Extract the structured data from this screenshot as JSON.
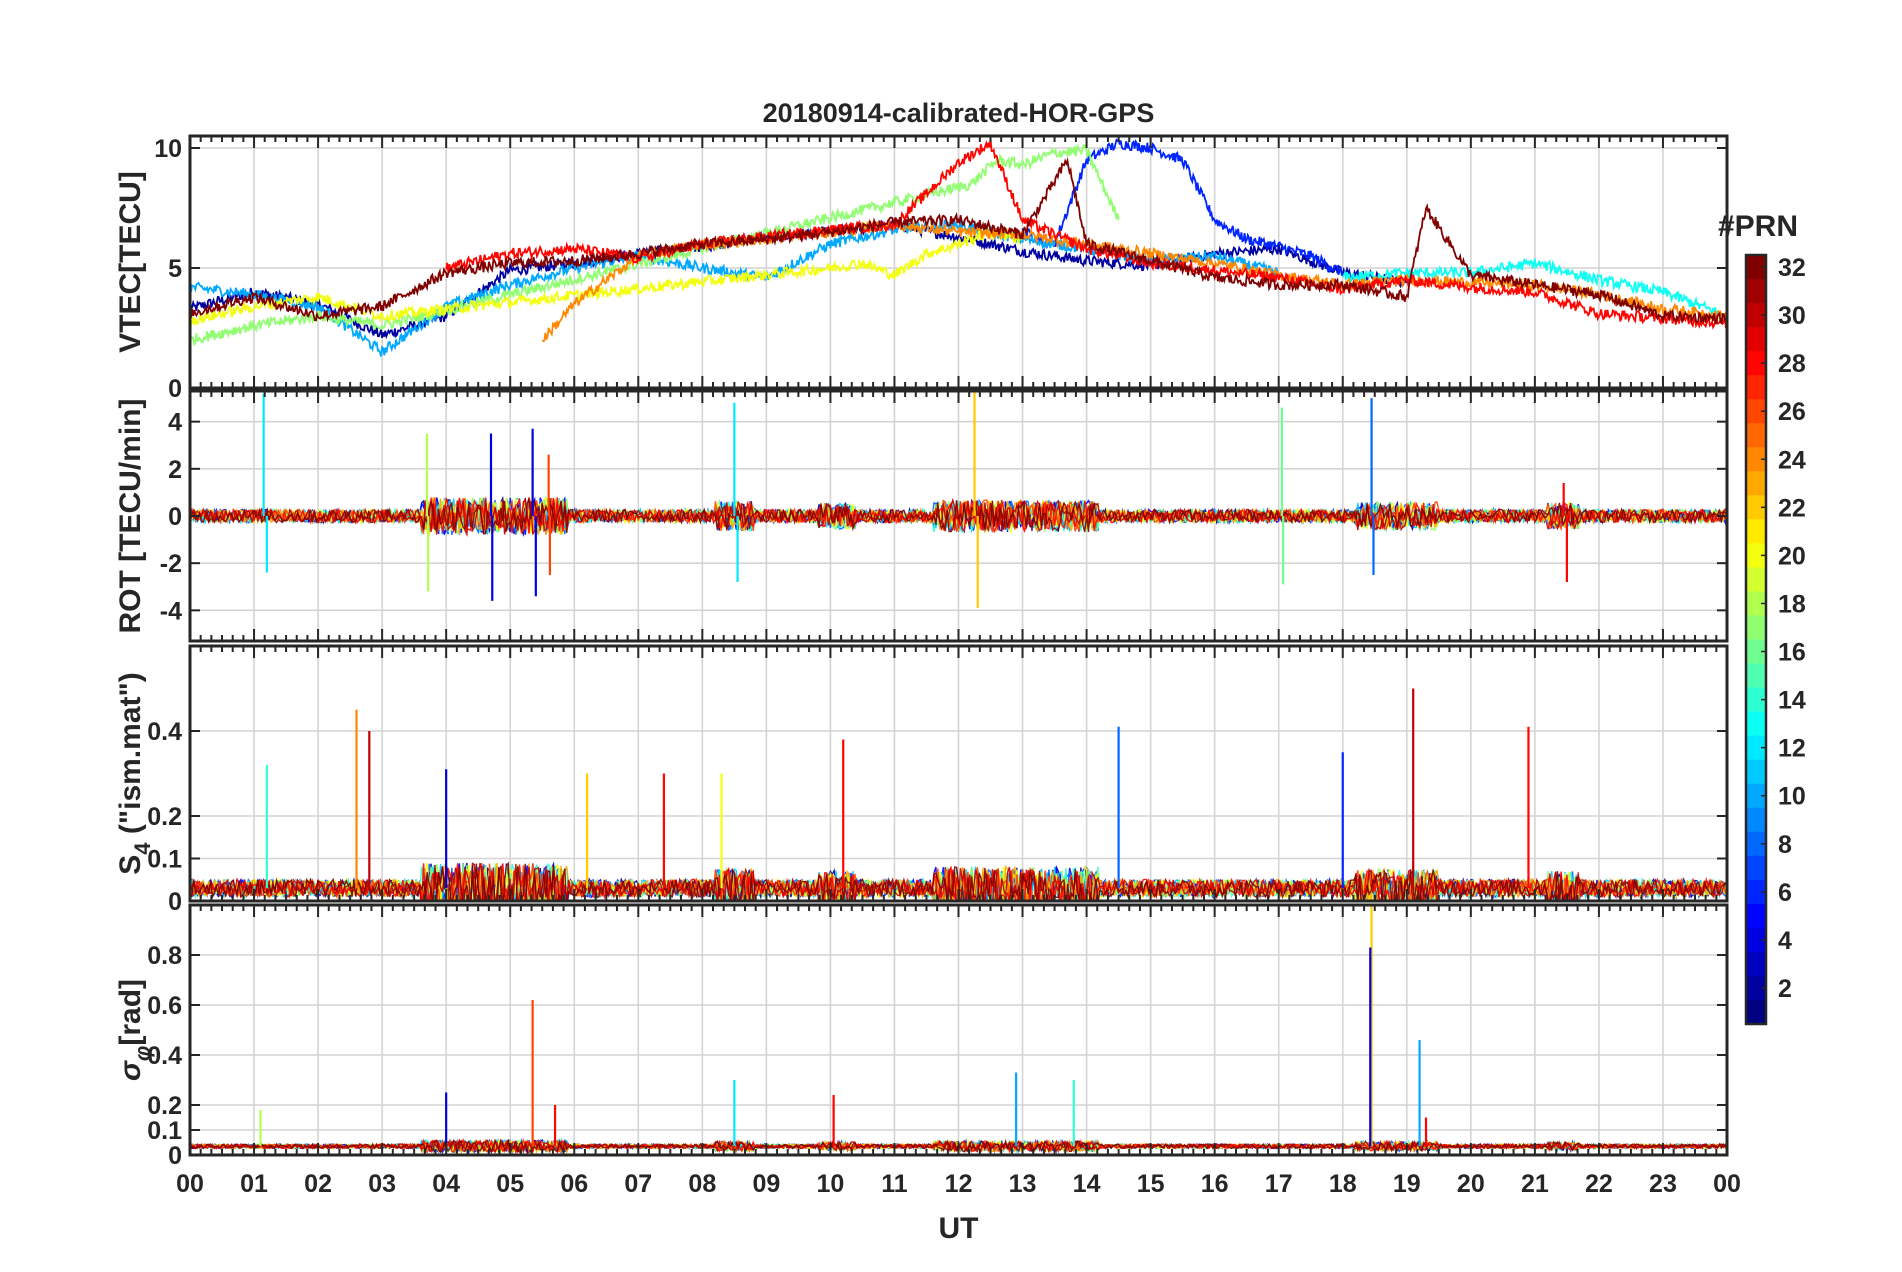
{
  "chart_data": [
    {
      "type": "line",
      "panel": "vtec",
      "title": "20180914-calibrated-HOR-GPS",
      "ylabel": "VTEC[TECU]",
      "ylim": [
        0,
        10.5
      ],
      "yticks": [
        0,
        5,
        10
      ],
      "xlabel": "",
      "grid": true,
      "series_note": "32 PRN traces colored by PRN number; representative values per hour 0..24",
      "series": [
        {
          "name": "PRN 2",
          "prn": 2,
          "x": [
            0,
            1,
            2,
            3,
            4,
            5,
            6,
            7,
            8,
            9,
            10,
            11,
            12,
            13,
            14,
            15,
            16,
            17,
            18,
            19
          ],
          "values": [
            3.3,
            4.0,
            3.5,
            2.2,
            3.0,
            4.9,
            5.2,
            5.6,
            5.9,
            6.3,
            6.5,
            6.8,
            6.3,
            5.7,
            5.3,
            5.1,
            5.6,
            5.8,
            4.8,
            4.4
          ]
        },
        {
          "name": "PRN 6",
          "prn": 6,
          "x": [
            13,
            13.5,
            14,
            14.5,
            15,
            15.5,
            16,
            16.5,
            17,
            17.5,
            18
          ],
          "values": [
            6.5,
            6.0,
            9.5,
            10.2,
            10.0,
            9.5,
            7.0,
            6.2,
            5.9,
            5.5,
            4.8
          ]
        },
        {
          "name": "PRN 10",
          "prn": 10,
          "x": [
            0,
            1,
            2,
            3,
            4,
            5,
            6,
            7,
            8,
            9,
            10,
            11,
            12,
            13,
            14,
            15,
            16,
            17
          ],
          "values": [
            4.2,
            3.9,
            3.4,
            1.5,
            3.4,
            4.3,
            5.0,
            5.5,
            5.0,
            4.6,
            6.0,
            6.6,
            6.8,
            6.2,
            5.8,
            5.3,
            5.5,
            4.8
          ]
        },
        {
          "name": "PRN 13",
          "prn": 13,
          "x": [
            18,
            19,
            20,
            21,
            22,
            23,
            24
          ],
          "values": [
            4.6,
            4.8,
            4.8,
            5.2,
            4.5,
            4.0,
            3.0
          ]
        },
        {
          "name": "PRN 17",
          "prn": 17,
          "x": [
            0,
            1,
            2,
            3,
            12.2,
            12.6,
            13,
            13.5,
            14,
            14.5
          ],
          "values": [
            2.0,
            2.6,
            3.0,
            2.6,
            8.5,
            9.5,
            9.3,
            9.8,
            9.9,
            7.0
          ]
        },
        {
          "name": "PRN 20",
          "prn": 20,
          "x": [
            0,
            1,
            2,
            3,
            10,
            10.5,
            11,
            11.5,
            12,
            12.5,
            13
          ],
          "values": [
            2.8,
            3.4,
            3.8,
            3.0,
            5.0,
            5.2,
            4.7,
            5.6,
            6.0,
            6.5,
            6.2
          ]
        },
        {
          "name": "PRN 24",
          "prn": 24,
          "x": [
            5.5,
            6,
            7,
            8,
            9,
            10,
            11,
            12,
            13,
            14,
            15,
            16,
            17,
            18,
            19,
            20,
            21,
            22,
            23,
            24
          ],
          "values": [
            2.0,
            3.5,
            5.5,
            6.0,
            6.2,
            6.5,
            6.8,
            6.5,
            6.4,
            6.0,
            5.6,
            5.2,
            4.7,
            4.3,
            4.5,
            4.4,
            4.3,
            3.9,
            3.3,
            3.0
          ]
        },
        {
          "name": "PRN 28",
          "prn": 28,
          "x": [
            4,
            5,
            6,
            7,
            8,
            9,
            10,
            11,
            12,
            12.5,
            13,
            14,
            15,
            16,
            17,
            18,
            19,
            20,
            21,
            22,
            23,
            24
          ],
          "values": [
            5.0,
            5.6,
            5.8,
            5.4,
            6.0,
            6.3,
            6.6,
            6.8,
            9.4,
            10.2,
            7.0,
            5.8,
            5.2,
            4.9,
            4.6,
            4.1,
            4.5,
            4.2,
            4.0,
            3.1,
            2.9,
            2.7
          ]
        },
        {
          "name": "PRN 32",
          "prn": 32,
          "x": [
            0,
            1,
            2,
            3,
            4,
            5,
            6,
            7,
            8,
            9,
            10,
            11,
            12,
            13,
            13.7,
            14,
            15,
            16,
            17,
            18,
            19,
            19.3,
            20,
            21,
            22,
            23,
            24
          ],
          "values": [
            3.1,
            3.8,
            3.0,
            3.4,
            4.8,
            5.2,
            5.3,
            5.6,
            6.0,
            6.2,
            6.5,
            6.9,
            7.0,
            6.4,
            9.5,
            6.0,
            5.3,
            4.6,
            4.3,
            4.3,
            3.8,
            7.5,
            4.7,
            4.3,
            3.9,
            3.0,
            2.9
          ]
        }
      ]
    },
    {
      "type": "line",
      "panel": "rot",
      "ylabel": "ROT [TECU/min]",
      "ylim": [
        -5.3,
        5.3
      ],
      "yticks": [
        -4,
        -2,
        0,
        2,
        4
      ],
      "grid": true,
      "series_note": "ROT fluctuates around 0 for all PRNs; notable spikes listed as [UT, value]",
      "spikes": [
        {
          "prn": 12,
          "x": 1.15,
          "value": 5.2
        },
        {
          "prn": 12,
          "x": 1.2,
          "value": -2.4
        },
        {
          "prn": 18,
          "x": 3.7,
          "value": 3.5
        },
        {
          "prn": 18,
          "x": 3.72,
          "value": -3.2
        },
        {
          "prn": 4,
          "x": 4.7,
          "value": 3.5
        },
        {
          "prn": 4,
          "x": 4.72,
          "value": -3.6
        },
        {
          "prn": 4,
          "x": 5.35,
          "value": 3.7
        },
        {
          "prn": 4,
          "x": 5.4,
          "value": -3.4
        },
        {
          "prn": 26,
          "x": 5.6,
          "value": 2.6
        },
        {
          "prn": 26,
          "x": 5.62,
          "value": -2.5
        },
        {
          "prn": 12,
          "x": 8.5,
          "value": 4.8
        },
        {
          "prn": 12,
          "x": 8.55,
          "value": -2.8
        },
        {
          "prn": 22,
          "x": 12.25,
          "value": 5.3
        },
        {
          "prn": 22,
          "x": 12.3,
          "value": -3.9
        },
        {
          "prn": 16,
          "x": 17.05,
          "value": 4.6
        },
        {
          "prn": 16,
          "x": 17.07,
          "value": -2.9
        },
        {
          "prn": 8,
          "x": 18.45,
          "value": 5.0
        },
        {
          "prn": 8,
          "x": 18.48,
          "value": -2.5
        },
        {
          "prn": 28,
          "x": 21.45,
          "value": 1.4
        },
        {
          "prn": 28,
          "x": 21.5,
          "value": -2.8
        }
      ]
    },
    {
      "type": "line",
      "panel": "s4",
      "ylabel": "S4 (\"ism.mat\")",
      "ylabel_base": "S",
      "ylabel_sub": "4",
      "ylabel_rest": " (\"ism.mat\")",
      "ylim": [
        0,
        0.6
      ],
      "yticks": [
        0,
        0.1,
        0.2,
        0.4
      ],
      "grid": true,
      "series_note": "S4 background 0.02–0.15; notable peaks listed as [UT, value]",
      "spikes": [
        {
          "prn": 14,
          "x": 1.2,
          "value": 0.32
        },
        {
          "prn": 24,
          "x": 2.6,
          "value": 0.45
        },
        {
          "prn": 30,
          "x": 2.8,
          "value": 0.4
        },
        {
          "prn": 4,
          "x": 4.0,
          "value": 0.31
        },
        {
          "prn": 22,
          "x": 6.2,
          "value": 0.3
        },
        {
          "prn": 28,
          "x": 7.4,
          "value": 0.3
        },
        {
          "prn": 20,
          "x": 8.3,
          "value": 0.3
        },
        {
          "prn": 28,
          "x": 10.2,
          "value": 0.38
        },
        {
          "prn": 8,
          "x": 14.5,
          "value": 0.41
        },
        {
          "prn": 6,
          "x": 18.0,
          "value": 0.35
        },
        {
          "prn": 30,
          "x": 19.1,
          "value": 0.5
        },
        {
          "prn": 28,
          "x": 20.9,
          "value": 0.41
        }
      ]
    },
    {
      "type": "line",
      "panel": "sigma-phi",
      "ylabel": "σφ[rad]",
      "ylabel_base": "σ",
      "ylabel_sub": "φ",
      "ylabel_rest": "[rad]",
      "ylim": [
        0,
        1.0
      ],
      "yticks": [
        0,
        0.1,
        0.2,
        0.4,
        0.6,
        0.8
      ],
      "xlabel": "UT",
      "xlim": [
        0,
        24
      ],
      "xticklabels": [
        "00",
        "01",
        "02",
        "03",
        "04",
        "05",
        "06",
        "07",
        "08",
        "09",
        "10",
        "11",
        "12",
        "13",
        "14",
        "15",
        "16",
        "17",
        "18",
        "19",
        "20",
        "21",
        "22",
        "23",
        "00"
      ],
      "grid": true,
      "series_note": "σφ background 0.02–0.06; notable peaks listed as [UT, value]",
      "spikes": [
        {
          "prn": 18,
          "x": 1.1,
          "value": 0.18
        },
        {
          "prn": 4,
          "x": 4.0,
          "value": 0.25
        },
        {
          "prn": 26,
          "x": 5.35,
          "value": 0.62
        },
        {
          "prn": 28,
          "x": 5.7,
          "value": 0.2
        },
        {
          "prn": 12,
          "x": 8.5,
          "value": 0.3
        },
        {
          "prn": 28,
          "x": 10.05,
          "value": 0.24
        },
        {
          "prn": 10,
          "x": 12.9,
          "value": 0.33
        },
        {
          "prn": 14,
          "x": 13.8,
          "value": 0.3
        },
        {
          "prn": 22,
          "x": 18.45,
          "value": 1.0
        },
        {
          "prn": 4,
          "x": 18.43,
          "value": 0.83
        },
        {
          "prn": 10,
          "x": 19.2,
          "value": 0.46
        },
        {
          "prn": 28,
          "x": 19.3,
          "value": 0.15
        }
      ]
    }
  ],
  "colorbar": {
    "label": "#PRN",
    "min": 1,
    "max": 32,
    "ticks": [
      "2",
      "4",
      "6",
      "8",
      "10",
      "12",
      "14",
      "16",
      "18",
      "20",
      "22",
      "24",
      "26",
      "28",
      "30",
      "32"
    ],
    "tick_values": [
      2,
      4,
      6,
      8,
      10,
      12,
      14,
      16,
      18,
      20,
      22,
      24,
      26,
      28,
      30,
      32
    ]
  }
}
